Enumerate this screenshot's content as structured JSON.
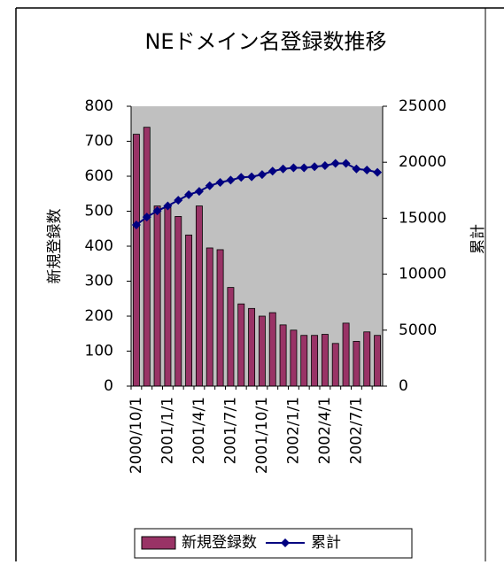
{
  "chart_data": {
    "type": "bar",
    "title": "NEドメイン名登録数推移",
    "categories": [
      "2000/10/1",
      null,
      null,
      "2001/1/1",
      null,
      null,
      "2001/4/1",
      null,
      null,
      "2001/7/1",
      null,
      null,
      "2001/10/1",
      null,
      null,
      "2002/1/1",
      null,
      null,
      "2002/4/1",
      null,
      null,
      "2002/7/1",
      null,
      null
    ],
    "y_label": "新規登録数",
    "y2_label": "累計",
    "ylim": [
      0,
      800
    ],
    "yticks": [
      0,
      100,
      200,
      300,
      400,
      500,
      600,
      700,
      800
    ],
    "y2lim": [
      0,
      25000
    ],
    "y2ticks": [
      0,
      5000,
      10000,
      15000,
      20000,
      25000
    ],
    "grid": false,
    "legend": "bottom",
    "series": [
      {
        "name": "新規登録数",
        "type": "bar",
        "color": "#993366",
        "values": [
          720,
          740,
          515,
          510,
          485,
          432,
          515,
          395,
          390,
          282,
          235,
          222,
          200,
          210,
          175,
          160,
          145,
          145,
          148,
          122,
          180,
          128,
          155,
          145
        ]
      },
      {
        "name": "累計",
        "type": "line",
        "axis": "y2",
        "color": "#000080",
        "values": [
          14400,
          15100,
          15650,
          16100,
          16600,
          17100,
          17400,
          17900,
          18200,
          18400,
          18650,
          18700,
          18900,
          19200,
          19400,
          19500,
          19500,
          19600,
          19700,
          19900,
          19900,
          19400,
          19300,
          19100
        ]
      }
    ]
  }
}
